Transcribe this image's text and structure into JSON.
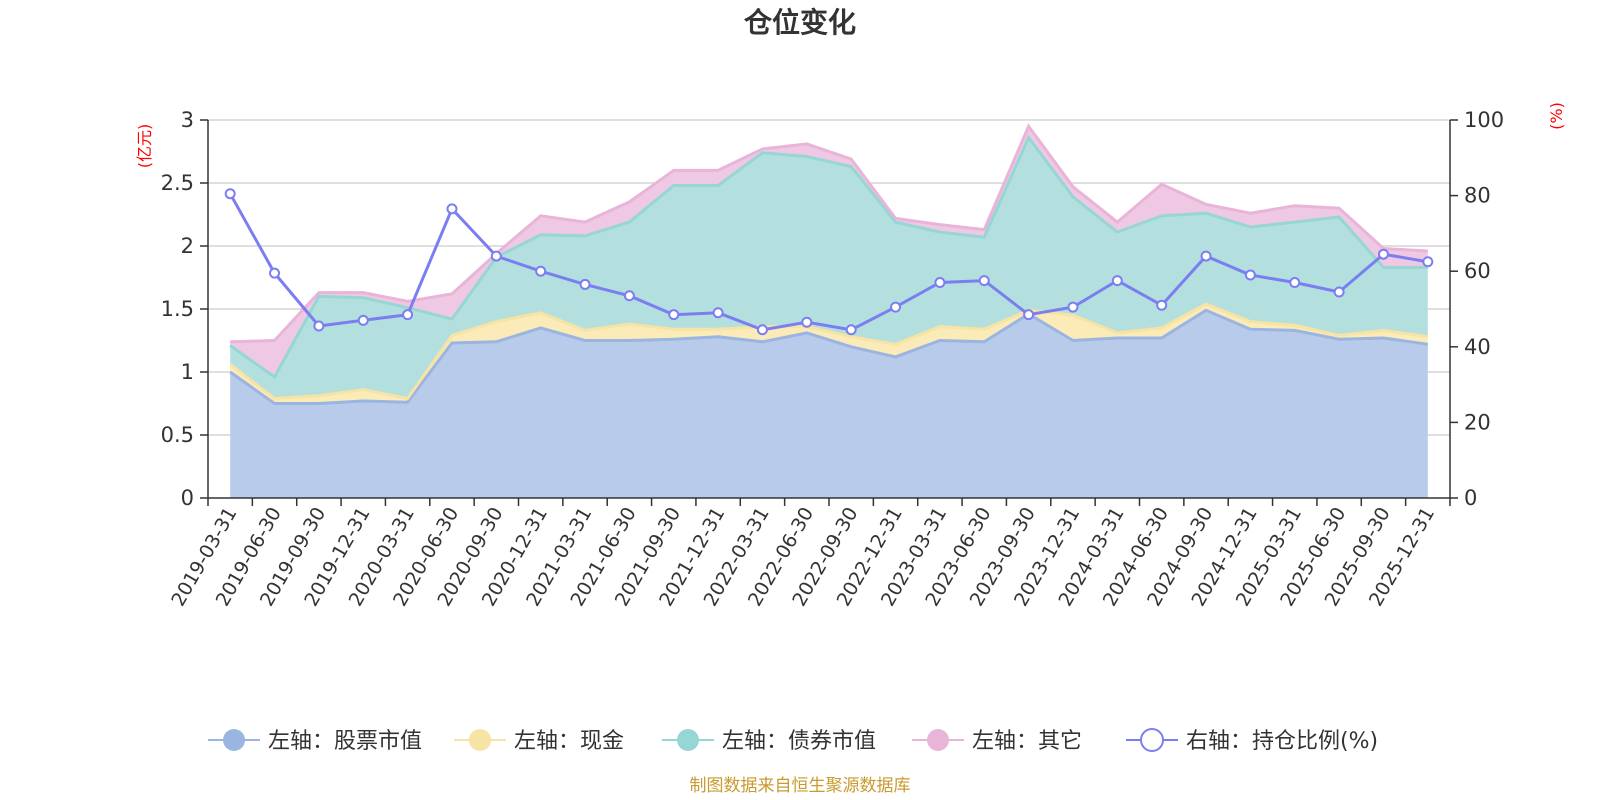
{
  "chart_data": {
    "type": "area",
    "title": "仓位变化",
    "left_axis": {
      "unit": "(亿元)",
      "ylim": [
        0,
        3
      ],
      "ticks": [
        "0",
        "0.5",
        "1",
        "1.5",
        "2",
        "2.5",
        "3"
      ],
      "tick_values": [
        0,
        0.5,
        1,
        1.5,
        2,
        2.5,
        3
      ]
    },
    "right_axis": {
      "unit": "(%)",
      "ylim": [
        0,
        100
      ],
      "ticks": [
        "0",
        "20",
        "40",
        "60",
        "80",
        "100"
      ],
      "tick_values": [
        0,
        20,
        40,
        60,
        80,
        100
      ]
    },
    "categories": [
      "2019-03-31",
      "2019-06-30",
      "2019-09-30",
      "2019-12-31",
      "2020-03-31",
      "2020-06-30",
      "2020-09-30",
      "2020-12-31",
      "2021-03-31",
      "2021-06-30",
      "2021-09-30",
      "2021-12-31",
      "2022-03-31",
      "2022-06-30",
      "2022-09-30",
      "2022-12-31",
      "2023-03-31",
      "2023-06-30",
      "2023-09-30",
      "2023-12-31",
      "2024-03-31",
      "2024-06-30",
      "2024-09-30",
      "2024-12-31",
      "2025-03-31",
      "2025-06-30",
      "2025-09-30",
      "2025-12-31"
    ],
    "series": [
      {
        "name": "左轴：股票市值",
        "axis": "left",
        "stacked": true,
        "color": "#9ab5e0",
        "fill": "#b8cbea",
        "values": [
          1.0,
          0.75,
          0.75,
          0.77,
          0.76,
          1.23,
          1.24,
          1.35,
          1.25,
          1.25,
          1.26,
          1.28,
          1.24,
          1.31,
          1.2,
          1.12,
          1.25,
          1.24,
          1.46,
          1.25,
          1.27,
          1.27,
          1.49,
          1.34,
          1.33,
          1.26,
          1.27,
          1.22
        ]
      },
      {
        "name": "左轴：现金",
        "axis": "left",
        "stacked": true,
        "color": "#f7e3a3",
        "fill": "#faebb8",
        "values": [
          0.06,
          0.04,
          0.06,
          0.09,
          0.03,
          0.06,
          0.16,
          0.12,
          0.08,
          0.13,
          0.08,
          0.06,
          0.12,
          0.05,
          0.08,
          0.1,
          0.11,
          0.1,
          0.03,
          0.2,
          0.04,
          0.08,
          0.05,
          0.06,
          0.04,
          0.03,
          0.06,
          0.06
        ]
      },
      {
        "name": "左轴：债券市值",
        "axis": "left",
        "stacked": true,
        "color": "#96d6d4",
        "fill": "#b3e0df",
        "values": [
          0.15,
          0.17,
          0.79,
          0.73,
          0.72,
          0.13,
          0.51,
          0.62,
          0.75,
          0.81,
          1.14,
          1.14,
          1.38,
          1.35,
          1.35,
          0.97,
          0.75,
          0.73,
          1.37,
          0.94,
          0.8,
          0.89,
          0.72,
          0.75,
          0.82,
          0.94,
          0.5,
          0.55
        ]
      },
      {
        "name": "左轴：其它",
        "axis": "left",
        "stacked": true,
        "color": "#e8b4d8",
        "fill": "#efc9e3",
        "values": [
          0.03,
          0.29,
          0.03,
          0.04,
          0.05,
          0.2,
          0.03,
          0.15,
          0.11,
          0.16,
          0.12,
          0.12,
          0.03,
          0.1,
          0.06,
          0.03,
          0.06,
          0.06,
          0.09,
          0.08,
          0.08,
          0.25,
          0.07,
          0.11,
          0.13,
          0.07,
          0.15,
          0.13
        ]
      },
      {
        "name": "右轴：持仓比例(%)",
        "axis": "right",
        "stacked": false,
        "color": "#7b7ef0",
        "values": [
          80.5,
          59.5,
          45.5,
          47,
          48.5,
          76.5,
          64,
          60,
          56.5,
          53.5,
          48.5,
          49,
          44.5,
          46.5,
          44.5,
          50.5,
          57,
          57.5,
          48.5,
          50.5,
          57.5,
          51,
          64,
          59,
          57,
          54.5,
          64.5,
          62.5
        ]
      }
    ]
  },
  "source_text": "制图数据来自恒生聚源数据库"
}
